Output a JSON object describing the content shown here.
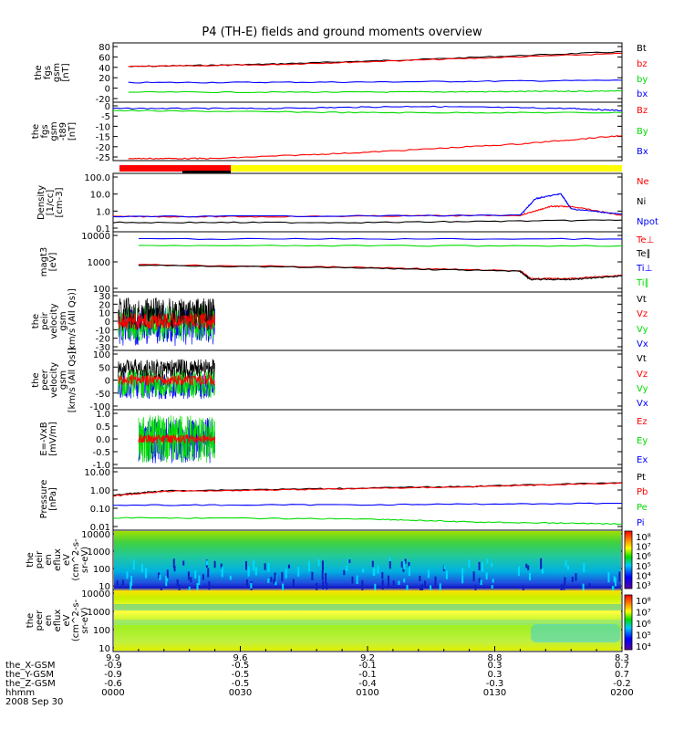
{
  "title": "P4 (TH-E) fields and ground moments overview",
  "colors": {
    "black": "#000000",
    "red": "#ff0000",
    "green": "#00dd00",
    "blue": "#0000ff",
    "yellow": "#ffff00"
  },
  "footer": {
    "rows": [
      {
        "label": "the_X-GSM",
        "values": [
          "-0.9",
          "-0.5",
          "-0.1",
          "0.3",
          "0.7"
        ]
      },
      {
        "label": "the_Y-GSM",
        "values": [
          "-0.9",
          "-0.5",
          "-0.1",
          "0.3",
          "0.7"
        ]
      },
      {
        "label": "the_Z-GSM",
        "values": [
          "-0.6",
          "-0.5",
          "-0.4",
          "-0.3",
          "-0.2"
        ]
      },
      {
        "label": "hhmm",
        "values": [
          "0000",
          "0030",
          "0100",
          "0130",
          "0200"
        ]
      }
    ],
    "top_values": [
      "9.9",
      "9.6",
      "9.2",
      "8.8",
      "8.3"
    ],
    "date": "2008 Sep 30"
  },
  "chart_data": [
    {
      "type": "line",
      "name": "panel-fgs-gsm",
      "ylabel": [
        "the",
        "fgs",
        "gsm",
        "[nT]"
      ],
      "yticks": [
        "80",
        "60",
        "40",
        "20",
        "0",
        "-20"
      ],
      "ylim": [
        -20,
        80
      ],
      "legend": [
        "Bt",
        "bz",
        "by",
        "bx"
      ],
      "series": [
        {
          "name": "Bt",
          "color": "black",
          "x": [
            0.03,
            0.3,
            0.6,
            1.0
          ],
          "values": [
            40,
            44,
            52,
            65
          ]
        },
        {
          "name": "bz",
          "color": "red",
          "x": [
            0.03,
            0.3,
            0.6,
            1.0
          ],
          "values": [
            40,
            43,
            51,
            62
          ]
        },
        {
          "name": "by",
          "color": "blue",
          "x": [
            0.03,
            0.5,
            1.0
          ],
          "values": [
            13,
            14,
            17
          ]
        },
        {
          "name": "bx",
          "color": "green",
          "x": [
            0.03,
            0.5,
            0.8,
            1.0
          ],
          "values": [
            -3,
            -3,
            -2,
            -1
          ]
        }
      ]
    },
    {
      "type": "line",
      "name": "panel-fgs-gsm-t89",
      "ylabel": [
        "the",
        "fgs",
        "gsm",
        "-t89",
        "[nT]"
      ],
      "yticks": [
        "0",
        "-5",
        "-10",
        "-15",
        "-20",
        "-25"
      ],
      "ylim": [
        -25,
        3
      ],
      "legend": [
        "Bz",
        "By",
        "Bx"
      ],
      "series": [
        {
          "name": "Bz",
          "color": "blue",
          "x": [
            0.0,
            0.3,
            0.6,
            0.9,
            1.0
          ],
          "values": [
            0,
            0,
            1,
            0,
            -1
          ]
        },
        {
          "name": "By",
          "color": "green",
          "x": [
            0.0,
            0.5,
            1.0
          ],
          "values": [
            -1,
            -2,
            -2
          ]
        },
        {
          "name": "Bx",
          "color": "red",
          "x": [
            0.03,
            0.2,
            0.5,
            0.8,
            1.0
          ],
          "values": [
            -24,
            -24,
            -21,
            -17,
            -13
          ]
        }
      ]
    },
    {
      "type": "line",
      "name": "panel-density",
      "ylabel": [
        "Density",
        "[1/cc]",
        "[cm-3]"
      ],
      "yticks": [
        "100.0",
        "10.0",
        "1.0",
        "0.1"
      ],
      "log": true,
      "ylim": [
        0.1,
        100
      ],
      "legend": [
        "Ne",
        "Ni",
        "Npot"
      ],
      "series": [
        {
          "name": "Ne",
          "color": "red",
          "x": [
            0.0,
            0.3,
            0.8,
            0.86,
            0.9,
            1.0
          ],
          "values": [
            0.6,
            0.6,
            0.7,
            2.0,
            2.0,
            0.7
          ]
        },
        {
          "name": "Ni",
          "color": "black",
          "x": [
            0.0,
            0.5,
            1.0
          ],
          "values": [
            0.3,
            0.3,
            0.4
          ]
        },
        {
          "name": "Npot",
          "color": "blue",
          "x": [
            0.0,
            0.8,
            0.83,
            0.88,
            0.9,
            1.0
          ],
          "values": [
            0.6,
            0.7,
            5,
            9,
            1.5,
            0.8
          ]
        }
      ]
    },
    {
      "type": "line",
      "name": "panel-temperature",
      "ylabel": [
        "magt3",
        "[eV]"
      ],
      "yticks": [
        "10000",
        "1000",
        "100"
      ],
      "log": true,
      "ylim": [
        30,
        10000
      ],
      "legend": [
        "Te⊥",
        "Te∥",
        "Ti⊥",
        "Ti∥"
      ],
      "series": [
        {
          "name": "Ti⊥",
          "color": "blue",
          "x": [
            0.05,
            1.0
          ],
          "values": [
            5000,
            5000
          ]
        },
        {
          "name": "Ti∥",
          "color": "green",
          "x": [
            0.05,
            1.0
          ],
          "values": [
            2600,
            2600
          ]
        },
        {
          "name": "Te⊥",
          "color": "red",
          "x": [
            0.05,
            0.5,
            0.8,
            0.82,
            0.9,
            1.0
          ],
          "values": [
            420,
            320,
            230,
            110,
            110,
            150
          ]
        },
        {
          "name": "Te∥",
          "color": "black",
          "x": [
            0.05,
            0.5,
            0.8,
            0.82,
            0.9,
            1.0
          ],
          "values": [
            400,
            300,
            220,
            100,
            100,
            140
          ]
        }
      ]
    },
    {
      "type": "line",
      "name": "panel-peir-velocity",
      "ylabel": [
        "the",
        "peir",
        "velocity",
        "gsm",
        "[km/s (All Qs)]"
      ],
      "yticks": [
        "30",
        "20",
        "10",
        "0",
        "-10",
        "-20",
        "-30"
      ],
      "ylim": [
        -30,
        30
      ],
      "legend": [
        "Vt",
        "Vz",
        "Vy",
        "Vx"
      ]
    },
    {
      "type": "line",
      "name": "panel-peer-velocity",
      "ylabel": [
        "the",
        "peer",
        "velocity",
        "gsm",
        "[km/s (All Qs)]"
      ],
      "yticks": [
        "100",
        "50",
        "0",
        "-50",
        "-100"
      ],
      "ylim": [
        -100,
        100
      ],
      "legend": [
        "Vt",
        "Vz",
        "Vy",
        "Vx"
      ]
    },
    {
      "type": "line",
      "name": "panel-efield",
      "ylabel": [
        "E=-VxB",
        "[mV/m]"
      ],
      "yticks": [
        "1.0",
        "0.5",
        "0.0",
        "-0.5",
        "-1.0"
      ],
      "ylim": [
        -1,
        1
      ],
      "legend": [
        "Ez",
        "Ey",
        "Ex"
      ]
    },
    {
      "type": "line",
      "name": "panel-pressure",
      "ylabel": [
        "Pressure",
        "[nPa]"
      ],
      "yticks": [
        "10.00",
        "1.00",
        "0.10",
        "0.01"
      ],
      "log": true,
      "ylim": [
        0.01,
        10
      ],
      "legend": [
        "Pt",
        "Pb",
        "Pe",
        "Pi"
      ],
      "series": [
        {
          "name": "Pt",
          "color": "black",
          "x": [
            0.0,
            0.1,
            0.4,
            0.7,
            1.0
          ],
          "values": [
            0.5,
            0.8,
            1.0,
            1.3,
            2.0
          ]
        },
        {
          "name": "Pb",
          "color": "red",
          "x": [
            0.0,
            0.1,
            0.4,
            0.7,
            1.0
          ],
          "values": [
            0.45,
            0.75,
            0.95,
            1.25,
            1.9
          ]
        },
        {
          "name": "Pe",
          "color": "blue",
          "x": [
            0.0,
            0.5,
            1.0
          ],
          "values": [
            0.16,
            0.17,
            0.2
          ]
        },
        {
          "name": "Pi",
          "color": "green",
          "x": [
            0.0,
            0.5,
            0.7,
            1.0
          ],
          "values": [
            0.04,
            0.035,
            0.025,
            0.02
          ]
        }
      ]
    },
    {
      "type": "heatmap",
      "name": "panel-peir-spectrogram",
      "ylabel": [
        "the",
        "peir",
        "en",
        "eflux",
        "eV",
        "(cm^2-s-",
        "sr-eV)"
      ],
      "yticks": [
        "10000",
        "1000",
        "100",
        "10"
      ],
      "colorbar": [
        "10⁸",
        "10⁷",
        "10⁶",
        "10⁵",
        "10⁴",
        "10³"
      ]
    },
    {
      "type": "heatmap",
      "name": "panel-peer-spectrogram",
      "ylabel": [
        "the",
        "peer",
        "en",
        "eflux",
        "eV",
        "(cm^2-s-",
        "sr-eV)"
      ],
      "yticks": [
        "10000",
        "1000",
        "100",
        "10"
      ],
      "colorbar": [
        "10⁸",
        "10⁷",
        "10⁶",
        "10⁵",
        "10⁴"
      ]
    }
  ]
}
